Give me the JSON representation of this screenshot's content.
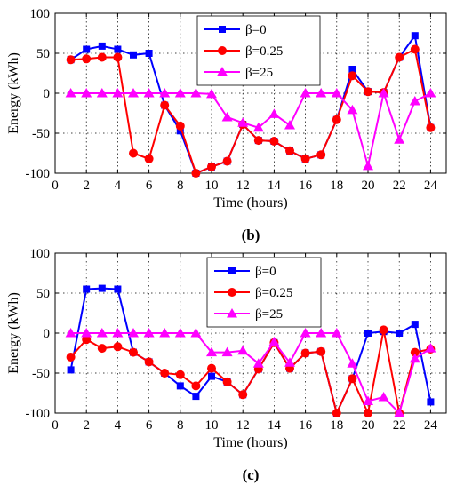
{
  "chart_data": [
    {
      "type": "line",
      "panel_label": "(b)",
      "xlabel": "Time (hours)",
      "ylabel": "Energy (kWh)",
      "xlim": [
        0,
        25
      ],
      "ylim": [
        -100,
        100
      ],
      "xticks": [
        0,
        2,
        4,
        6,
        8,
        10,
        12,
        14,
        16,
        18,
        20,
        22,
        24
      ],
      "yticks": [
        -100,
        -50,
        0,
        50,
        100
      ],
      "grid": true,
      "legend_position": "top-center",
      "x": [
        1,
        2,
        3,
        4,
        5,
        6,
        7,
        8,
        9,
        10,
        11,
        12,
        13,
        14,
        15,
        16,
        17,
        18,
        19,
        20,
        21,
        22,
        23,
        24
      ],
      "series": [
        {
          "name": "β=0",
          "color": "#0000ff",
          "marker": "square",
          "values": [
            42,
            55,
            59,
            55,
            48,
            50,
            -15,
            -47,
            -100,
            -92,
            -85,
            -39,
            -59,
            -60,
            -72,
            -82,
            -77,
            -33,
            30,
            2,
            1,
            45,
            72,
            -43
          ]
        },
        {
          "name": "β=0.25",
          "color": "#ff0000",
          "marker": "circle",
          "values": [
            42,
            43,
            45,
            45,
            -75,
            -82,
            -15,
            -41,
            -100,
            -92,
            -85,
            -39,
            -59,
            -60,
            -72,
            -82,
            -77,
            -33,
            22,
            2,
            1,
            45,
            55,
            -43
          ]
        },
        {
          "name": "β=25",
          "color": "#ff00ff",
          "marker": "triangle",
          "values": [
            0,
            0,
            0,
            0,
            0,
            0,
            0,
            0,
            0,
            -1,
            -30,
            -37,
            -43,
            -26,
            -40,
            0,
            0,
            0,
            -21,
            -91,
            0,
            -58,
            -10,
            0
          ]
        }
      ]
    },
    {
      "type": "line",
      "panel_label": "(c)",
      "xlabel": "Time (hours)",
      "ylabel": "Energy (kWh)",
      "xlim": [
        0,
        25
      ],
      "ylim": [
        -100,
        100
      ],
      "xticks": [
        0,
        2,
        4,
        6,
        8,
        10,
        12,
        14,
        16,
        18,
        20,
        22,
        24
      ],
      "yticks": [
        -100,
        -50,
        0,
        50,
        100
      ],
      "grid": true,
      "legend_position": "top-center",
      "x": [
        1,
        2,
        3,
        4,
        5,
        6,
        7,
        8,
        9,
        10,
        11,
        12,
        13,
        14,
        15,
        16,
        17,
        18,
        19,
        20,
        21,
        22,
        23,
        24
      ],
      "series": [
        {
          "name": "β=0",
          "color": "#0000ff",
          "marker": "square",
          "values": [
            -46,
            55,
            56,
            55,
            -24,
            -36,
            -50,
            -66,
            -79,
            -54,
            -61,
            -77,
            -45,
            -12,
            -44,
            -25,
            -23,
            -100,
            -57,
            0,
            2,
            0,
            11,
            -86
          ]
        },
        {
          "name": "β=0.25",
          "color": "#ff0000",
          "marker": "circle",
          "values": [
            -30,
            -8,
            -19,
            -17,
            -24,
            -36,
            -50,
            -52,
            -66,
            -44,
            -61,
            -77,
            -45,
            -12,
            -44,
            -25,
            -23,
            -100,
            -57,
            -100,
            4,
            -100,
            -24,
            -20
          ]
        },
        {
          "name": "β=25",
          "color": "#ff00ff",
          "marker": "triangle",
          "values": [
            0,
            0,
            0,
            0,
            0,
            0,
            0,
            0,
            0,
            -24,
            -24,
            -22,
            -38,
            -11,
            -37,
            0,
            0,
            0,
            -38,
            -85,
            -80,
            -100,
            -32,
            -19
          ]
        }
      ]
    }
  ]
}
